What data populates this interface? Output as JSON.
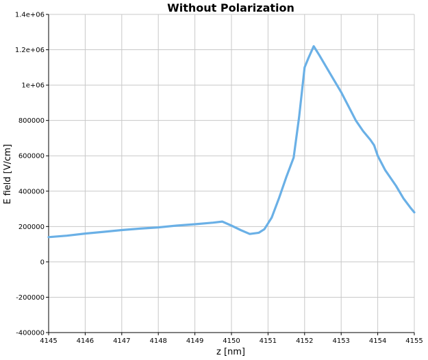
{
  "chart_data": {
    "type": "line",
    "title": "Without Polarization",
    "xlabel": "z [nm]",
    "ylabel": "E field [V/cm]",
    "xlim": [
      4145,
      4155
    ],
    "ylim": [
      -400000,
      1400000
    ],
    "x_ticks": [
      4145,
      4146,
      4147,
      4148,
      4149,
      4150,
      4151,
      4152,
      4153,
      4154,
      4155
    ],
    "y_ticks": [
      -400000,
      -200000,
      0,
      200000,
      400000,
      600000,
      800000,
      1000000,
      1200000,
      1400000
    ],
    "x_tick_labels": [
      "4145",
      "4146",
      "4147",
      "4148",
      "4149",
      "4150",
      "4151",
      "4152",
      "4153",
      "4154",
      "4155"
    ],
    "y_tick_labels": [
      "-400000",
      "-200000",
      "0",
      "200000",
      "400000",
      "600000",
      "800000",
      "1e+06",
      "1.2e+06",
      "1.4e+06"
    ],
    "grid": true,
    "series": [
      {
        "color": "#6ab0e6",
        "x": [
          4145.0,
          4145.5,
          4146.0,
          4146.5,
          4147.0,
          4147.5,
          4148.0,
          4148.5,
          4149.0,
          4149.5,
          4149.75,
          4150.0,
          4150.25,
          4150.5,
          4150.75,
          4150.9,
          4151.1,
          4151.3,
          4151.5,
          4151.7,
          4151.85,
          4152.0,
          4152.1,
          4152.25,
          4152.4,
          4152.6,
          4152.8,
          4153.0,
          4153.2,
          4153.4,
          4153.6,
          4153.8,
          4153.9,
          4154.0,
          4154.2,
          4154.5,
          4154.7,
          4154.9,
          4155.0
        ],
        "y": [
          140000,
          148000,
          160000,
          170000,
          180000,
          188000,
          195000,
          205000,
          213000,
          222000,
          228000,
          205000,
          180000,
          158000,
          165000,
          185000,
          250000,
          360000,
          480000,
          590000,
          820000,
          1100000,
          1150000,
          1220000,
          1170000,
          1100000,
          1030000,
          960000,
          880000,
          800000,
          740000,
          690000,
          660000,
          600000,
          520000,
          430000,
          360000,
          305000,
          280000
        ]
      }
    ]
  }
}
